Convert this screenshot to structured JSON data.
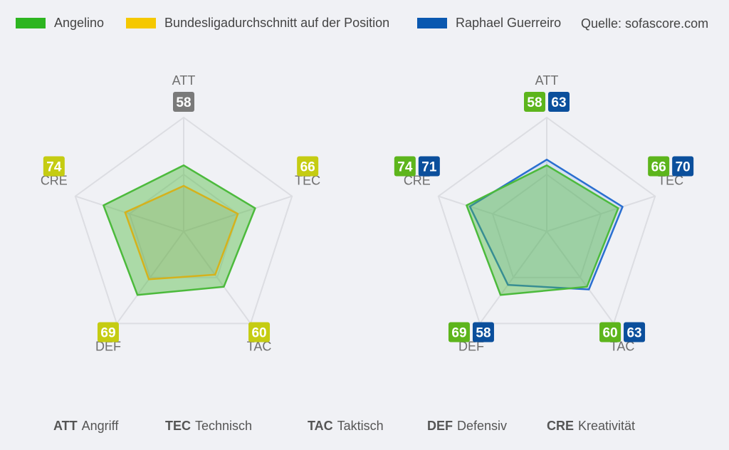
{
  "legend": {
    "items": [
      {
        "label": "Angelino",
        "color": "#2db520"
      },
      {
        "label": "Bundesligadurchschnitt auf der Position",
        "color": "#f5c800"
      },
      {
        "label": "Raphael Guerreiro",
        "color": "#0a58b0"
      }
    ],
    "source": "Quelle: sofascore.com"
  },
  "colors": {
    "angelino": "#4cba3c",
    "average": "#d5b21c",
    "guerreiro": "#2a6fd0",
    "badge_neutral": "#7a7a7a",
    "badge_yellow": "#c5cc12",
    "badge_green": "#5db51c",
    "badge_blue": "#0b4f9c",
    "grid": "#dcdde2",
    "axis_label": "#6f6f6f"
  },
  "chart_data": [
    {
      "type": "radar",
      "axes": [
        "ATT",
        "TEC",
        "TAC",
        "DEF",
        "CRE"
      ],
      "max": 100,
      "series": [
        {
          "name": "Angelino",
          "values": [
            58,
            66,
            60,
            69,
            74
          ]
        },
        {
          "name": "Bundesligadurchschnitt auf der Position",
          "values": [
            40,
            50,
            47,
            52,
            54
          ]
        }
      ],
      "value_labels": [
        [
          "58"
        ],
        [
          "66"
        ],
        [
          "60"
        ],
        [
          "69"
        ],
        [
          "74"
        ]
      ]
    },
    {
      "type": "radar",
      "axes": [
        "ATT",
        "TEC",
        "TAC",
        "DEF",
        "CRE"
      ],
      "max": 100,
      "series": [
        {
          "name": "Angelino",
          "values": [
            58,
            66,
            60,
            69,
            74
          ]
        },
        {
          "name": "Raphael Guerreiro",
          "values": [
            63,
            70,
            63,
            58,
            71
          ]
        }
      ],
      "value_labels": [
        [
          "58",
          "63"
        ],
        [
          "66",
          "70"
        ],
        [
          "60",
          "63"
        ],
        [
          "69",
          "58"
        ],
        [
          "74",
          "71"
        ]
      ]
    }
  ],
  "footer": [
    {
      "abbr": "ATT",
      "label": "Angriff"
    },
    {
      "abbr": "TEC",
      "label": "Technisch"
    },
    {
      "abbr": "TAC",
      "label": "Taktisch"
    },
    {
      "abbr": "DEF",
      "label": "Defensiv"
    },
    {
      "abbr": "CRE",
      "label": "Kreativität"
    }
  ]
}
